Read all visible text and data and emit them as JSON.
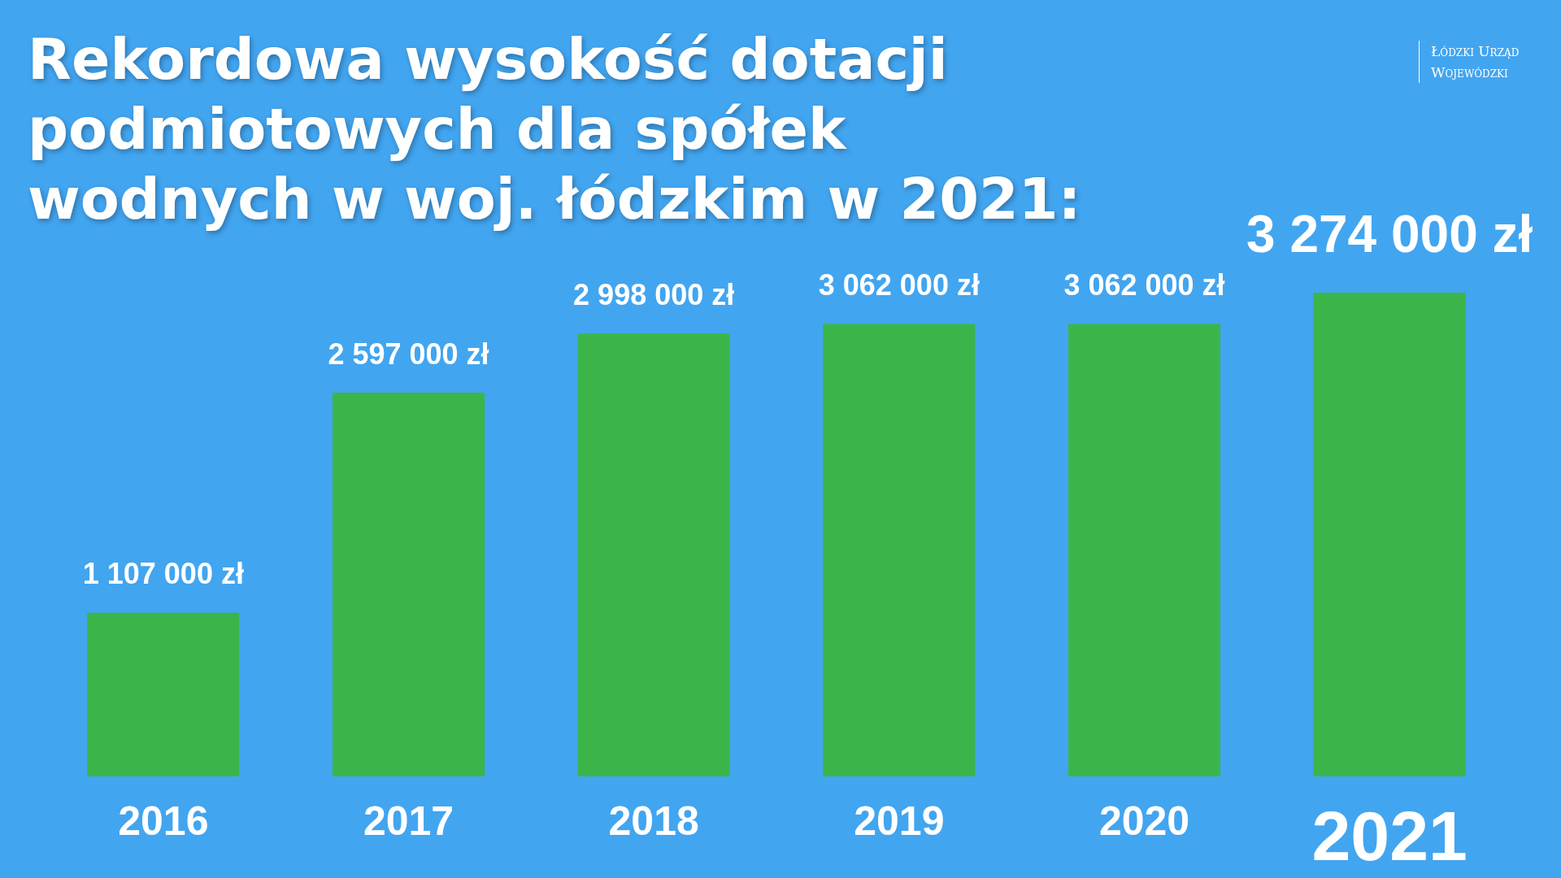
{
  "chart_data": {
    "type": "bar",
    "title": "Rekordowa wysokość dotacji podmiotowych dla spółek wodnych w woj. łódzkim w 2021:",
    "annotations": [
      "Łódzki Urząd Wojewódzki"
    ],
    "categories": [
      "2016",
      "2017",
      "2018",
      "2019",
      "2020",
      "2021"
    ],
    "values": [
      1107000,
      2597000,
      2998000,
      3062000,
      3062000,
      3274000
    ],
    "value_labels": [
      "1 107 000 zł",
      "2 597 000 zł",
      "2 998 000 zł",
      "3 062 000 zł",
      "3 062 000 zł",
      "3 274 000 zł"
    ],
    "color": "#3bb54a"
  }
}
